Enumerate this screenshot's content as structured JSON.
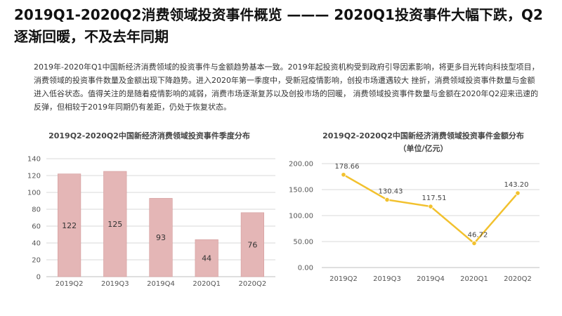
{
  "header": {
    "title": "2019Q1-2020Q2消费领域投资事件概览 ——— 2020Q1投资事件大幅下跌，Q2逐渐回暖，不及去年同期"
  },
  "intro": {
    "text": "2019年-2020年Q1中国新经济消费领域的投资事件与金额趋势基本一致。2019年起投资机构受到政府引导因素影响，将更多目光转向科技型项目，消费领域的投资事件数量及金额出现下降趋势。进入2020年第一季度中，受新冠疫情影响，创投市场遭遇较大 挫折，消费领域投资事件数量与金额进入低谷状态。值得关注的是随着疫情影响的减弱，消费市场逐渐复苏以及创投市场的回暖， 消费领域投资事件数量与金额在2020年Q2迎来迅速的反弹，但相较于2019年同期仍有差距，仍处于恢复状态。"
  },
  "colors": {
    "bar_fill": "#e4b6b6",
    "bar_stroke": "#d49c9c",
    "line": "#f2c12e",
    "grid": "#d9d9d9"
  },
  "chart_data": [
    {
      "type": "bar",
      "title": "2019Q2-2020Q2中国新经济消费领域投资事件季度分布",
      "categories": [
        "2019Q2",
        "2019Q3",
        "2019Q4",
        "2020Q1",
        "2020Q2"
      ],
      "values": [
        122,
        125,
        93,
        44,
        76
      ],
      "value_labels": [
        "122",
        "125",
        "93",
        "44",
        "76"
      ],
      "ylim": [
        0,
        140
      ],
      "yticks": [
        "0",
        "20",
        "40",
        "60",
        "80",
        "100",
        "120",
        "140"
      ],
      "grid": true
    },
    {
      "type": "line",
      "title": "2019Q2-2020Q2中国新经济消费领域投资事件金额分布",
      "subtitle": "（单位/亿元）",
      "categories": [
        "2019Q2",
        "2019Q3",
        "2019Q4",
        "2020Q1",
        "2020Q2"
      ],
      "values": [
        178.66,
        130.43,
        117.51,
        46.72,
        143.2
      ],
      "value_labels": [
        "178.66",
        "130.43",
        "117.51",
        "46.72",
        "143.20"
      ],
      "ylim": [
        0,
        200
      ],
      "yticks": [
        "0.00",
        "50.00",
        "100.00",
        "150.00",
        "200.00"
      ],
      "grid": true
    }
  ]
}
